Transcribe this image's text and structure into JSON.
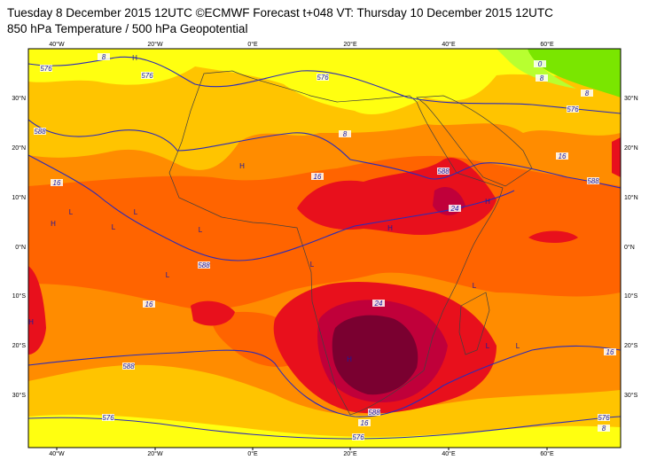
{
  "header": {
    "title": "Tuesday 8 December 2015 12UTC ©ECMWF Forecast t+048 VT: Thursday 10 December 2015 12UTC",
    "subtitle": "850 hPa Temperature / 500 hPa Geopotential"
  },
  "map": {
    "longitude_labels": [
      "40°W",
      "20°W",
      "0°E",
      "20°E",
      "40°E",
      "60°E"
    ],
    "latitude_labels": [
      "30°N",
      "20°N",
      "10°N",
      "0°N",
      "10°S",
      "20°S",
      "30°S"
    ],
    "contour_labels": [
      "576",
      "8",
      "576",
      "588",
      "576",
      "8",
      "16",
      "16",
      "588",
      "24",
      "588",
      "16",
      "24",
      "588",
      "16",
      "588",
      "16",
      "576",
      "576",
      "576",
      "8",
      "16",
      "588",
      "576",
      "8",
      "8",
      "0"
    ],
    "pressure_centres": [
      "H",
      "H",
      "H",
      "H",
      "H",
      "H",
      "H",
      "L",
      "L",
      "L",
      "L",
      "L",
      "L",
      "L",
      "L",
      "L"
    ]
  }
}
